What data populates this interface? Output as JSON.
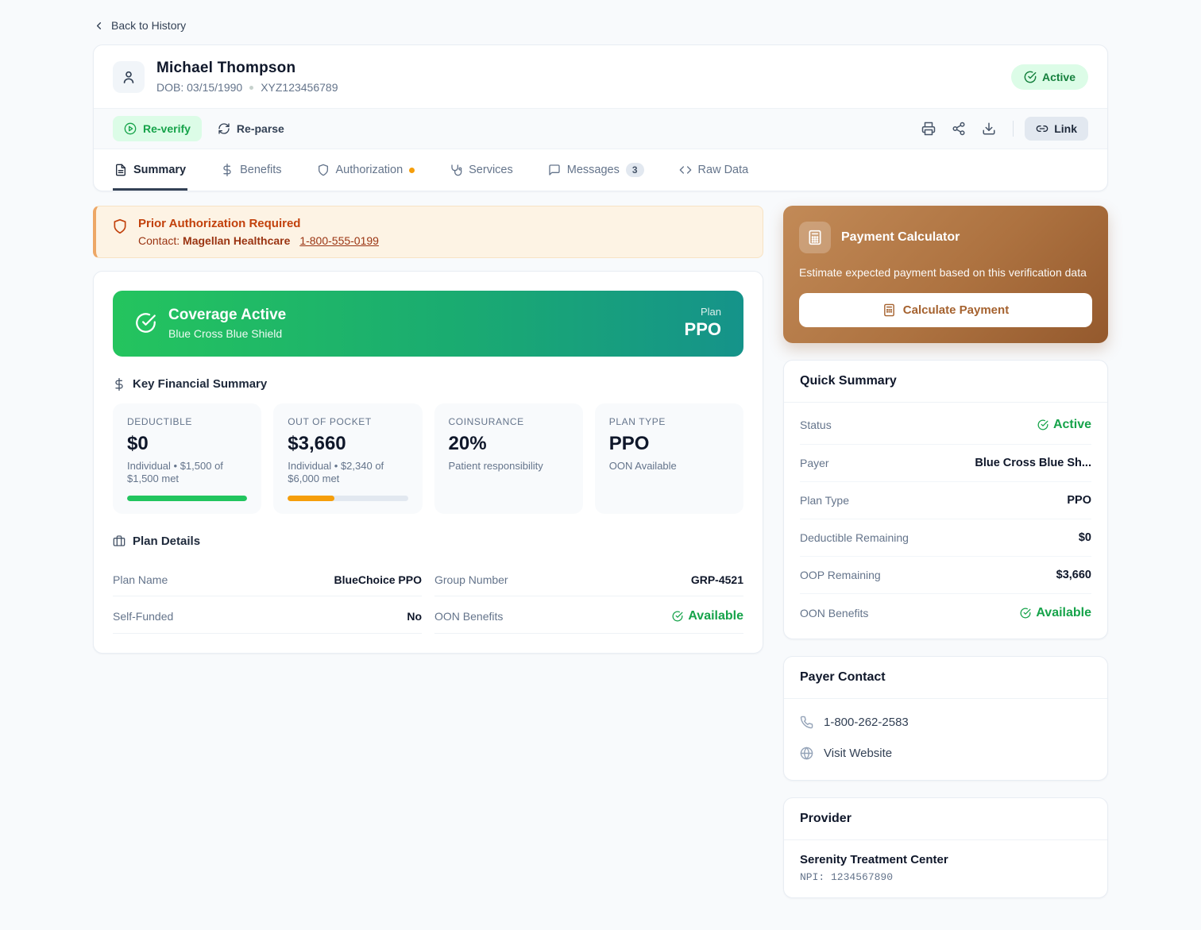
{
  "page": {
    "back_link": "Back to History"
  },
  "patient": {
    "name": "Michael Thompson",
    "dob": "DOB: 03/15/1990",
    "member_id": "XYZ123456789",
    "status_badge": "Active"
  },
  "toolbar": {
    "reverify_label": "Re-verify",
    "reparse_label": "Re-parse",
    "link_label": "Link"
  },
  "tabs": [
    {
      "label": "Summary"
    },
    {
      "label": "Benefits"
    },
    {
      "label": "Authorization"
    },
    {
      "label": "Services"
    },
    {
      "label": "Messages",
      "badge": "3"
    },
    {
      "label": "Raw Data"
    }
  ],
  "alert": {
    "title": "Prior Authorization Required",
    "contact_label": "Contact:",
    "contact_name": "Magellan Healthcare",
    "phone": "1-800-555-0199"
  },
  "coverage_banner": {
    "title": "Coverage Active",
    "subtitle": "Blue Cross Blue Shield",
    "plan_label": "Plan",
    "plan_value": "PPO"
  },
  "financial": {
    "heading": "Key Financial Summary",
    "cards": [
      {
        "label": "DEDUCTIBLE",
        "value": "$0",
        "sub": "Individual • $1,500 of $1,500 met",
        "progress": 100,
        "color": "#22c55e"
      },
      {
        "label": "OUT OF POCKET",
        "value": "$3,660",
        "sub": "Individual • $2,340 of $6,000 met",
        "progress": 39,
        "color": "#f59e0b"
      },
      {
        "label": "COINSURANCE",
        "value": "20%",
        "sub": "Patient responsibility"
      },
      {
        "label": "PLAN TYPE",
        "value": "PPO",
        "sub": "OON Available"
      }
    ]
  },
  "plan_details": {
    "heading": "Plan Details",
    "rows": [
      {
        "label": "Plan Name",
        "value": "BlueChoice PPO"
      },
      {
        "label": "Group Number",
        "value": "GRP-4521"
      },
      {
        "label": "Self-Funded",
        "value": "No"
      },
      {
        "label": "OON Benefits",
        "value": "Available"
      }
    ]
  },
  "payment_calculator": {
    "title": "Payment Calculator",
    "description": "Estimate expected payment based on this verification data",
    "button_label": "Calculate Payment"
  },
  "quick_summary": {
    "heading": "Quick Summary",
    "rows": [
      {
        "label": "Status",
        "value": "Active"
      },
      {
        "label": "Payer",
        "value": "Blue Cross Blue Sh..."
      },
      {
        "label": "Plan Type",
        "value": "PPO"
      },
      {
        "label": "Deductible Remaining",
        "value": "$0"
      },
      {
        "label": "OOP Remaining",
        "value": "$3,660"
      },
      {
        "label": "OON Benefits",
        "value": "Available"
      }
    ]
  },
  "payer_contact": {
    "heading": "Payer Contact",
    "phone": "1-800-262-2583",
    "website_label": "Visit Website"
  },
  "provider": {
    "heading": "Provider",
    "name": "Serenity Treatment Center",
    "npi": "NPI: 1234567890"
  },
  "colors": {
    "active_green": "#16a34a",
    "alert_orange": "#c2410c",
    "banner_gradient_start": "#22c55e",
    "banner_gradient_end": "#15938a",
    "calculator_brown": "#a5622f"
  }
}
